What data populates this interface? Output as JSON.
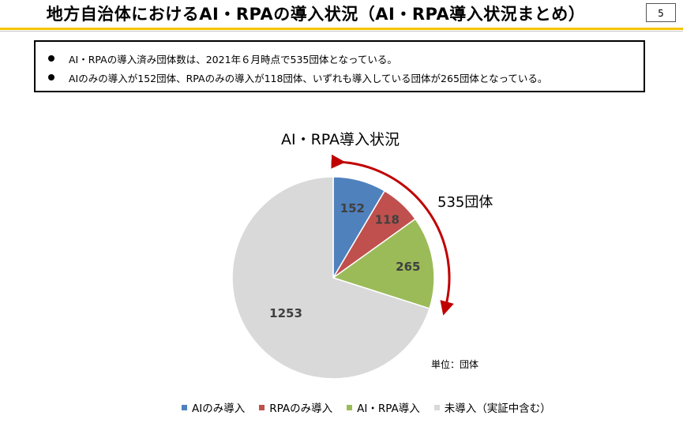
{
  "page": {
    "title": "地方自治体におけるAI・RPAの導入状況（AI・RPA導入状況まとめ）",
    "page_number": "5"
  },
  "summary": {
    "bullets": [
      "AI・RPAの導入済み団体数は、2021年６月時点で535団体となっている。",
      "AIのみの導入が152団体、RPAのみの導入が118団体、いずれも導入している団体が265団体となっている。"
    ]
  },
  "chart_data": {
    "type": "pie",
    "title": "AI・RPA導入状況",
    "categories": [
      "AIのみ導入",
      "RPAのみ導入",
      "AI・RPA導入",
      "未導入（実証中含む）"
    ],
    "values": [
      152,
      118,
      265,
      1253
    ],
    "colors": [
      "#4f81bd",
      "#c0504d",
      "#9bbb59",
      "#d9d9d9"
    ],
    "data_labels": [
      "152",
      "118",
      "265",
      "1253"
    ],
    "annotation": "535団体",
    "unit_label": "単位：団体",
    "legend_position": "bottom",
    "start_angle": "12 o'clock, clockwise"
  }
}
